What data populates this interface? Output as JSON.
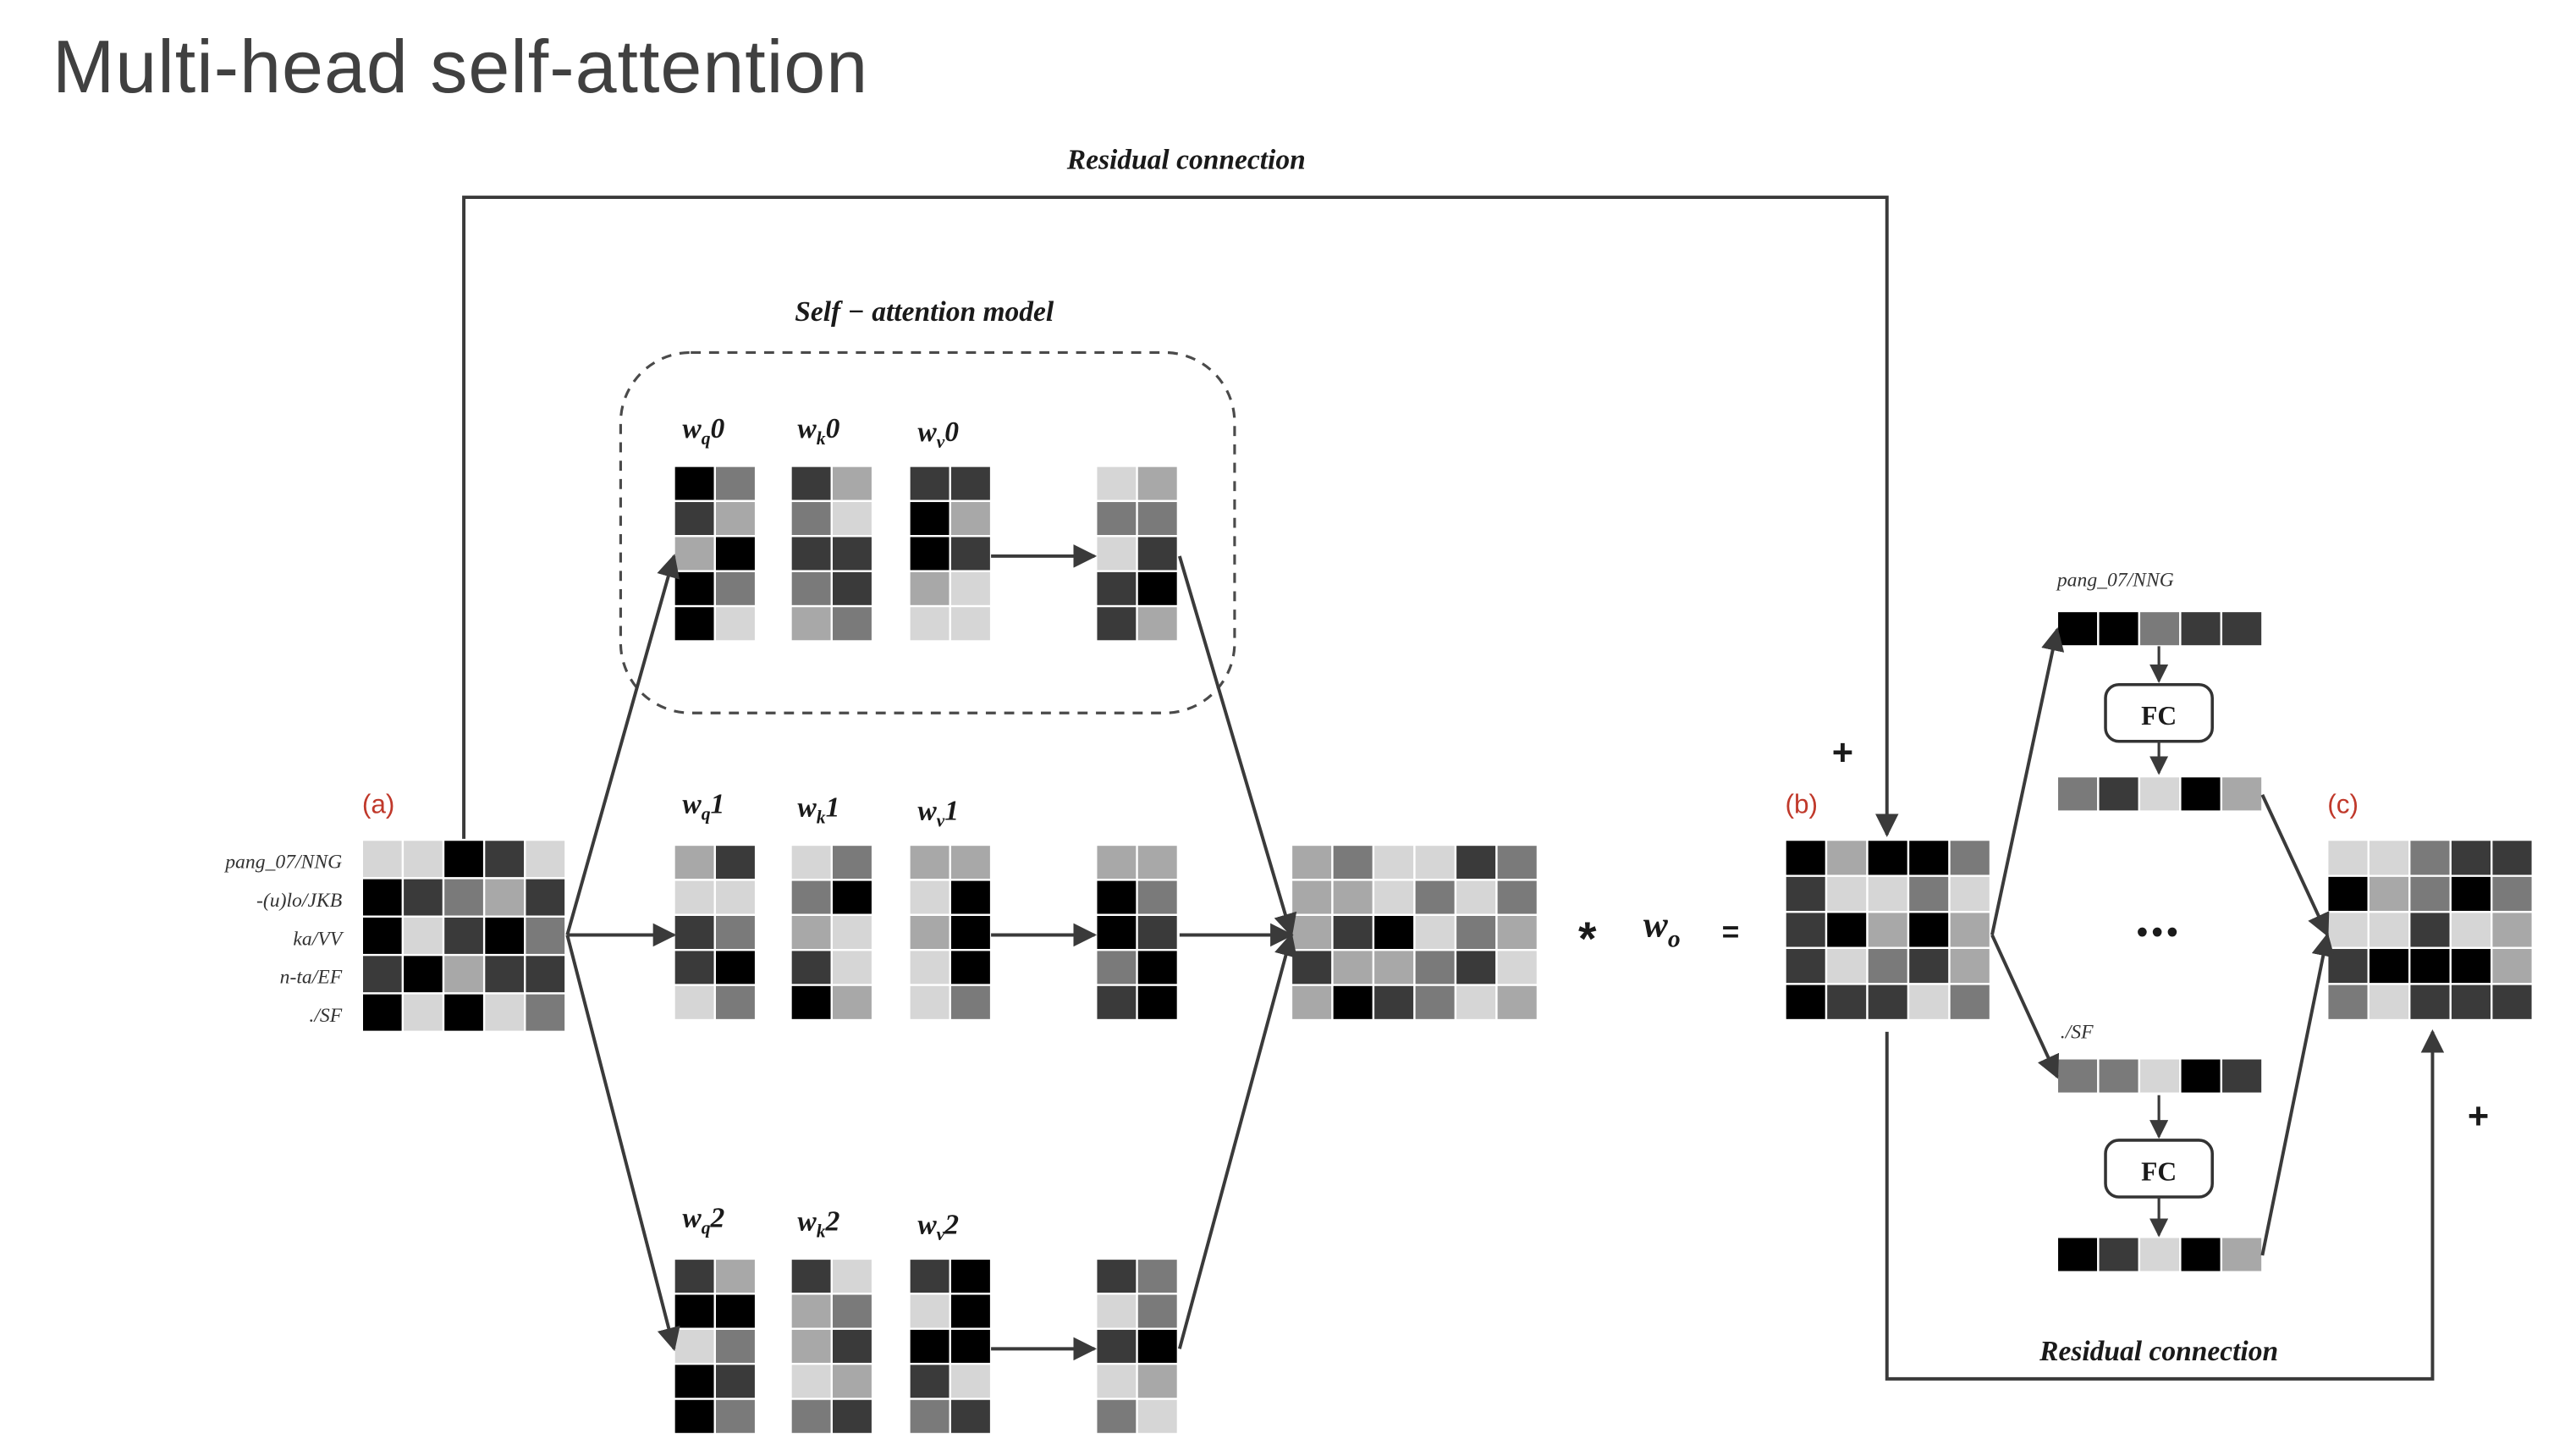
{
  "title": "Multi-head self-attention",
  "labels": {
    "residual_top": "Residual connection",
    "residual_bottom": "Residual connection",
    "self_attention": "Self − attention model",
    "panel_a": "(a)",
    "panel_b": "(b)",
    "panel_c": "(c)",
    "fc": "FC",
    "dots": "•••",
    "plus": "+",
    "times": "*",
    "wo": "w",
    "wo_sub": "o",
    "equals": "=",
    "pang_label": "pang_07/NNG",
    "sf_label": "./SF"
  },
  "tokens": [
    "pang_07/NNG",
    "-(u)lo/JKB",
    "ka/VV",
    "n-ta/EF",
    "./SF"
  ],
  "heads": [
    {
      "wq": "w",
      "wq_sub": "q",
      "wq_num": "0",
      "wk": "w",
      "wk_sub": "k",
      "wk_num": "0",
      "wv": "w",
      "wv_sub": "v",
      "wv_num": "0"
    },
    {
      "wq": "w",
      "wq_sub": "q",
      "wq_num": "1",
      "wk": "w",
      "wk_sub": "k",
      "wk_num": "1",
      "wv": "w",
      "wv_sub": "v",
      "wv_num": "1"
    },
    {
      "wq": "w",
      "wq_sub": "q",
      "wq_num": "2",
      "wk": "w",
      "wk_sub": "k",
      "wk_num": "2",
      "wv": "w",
      "wv_sub": "v",
      "wv_num": "2"
    }
  ],
  "colors": {
    "text": "#1a1a1a",
    "title": "#404040",
    "panel_label": "#c0392b",
    "line": "#3a3a3a",
    "dashed": "#4a4a4a"
  }
}
